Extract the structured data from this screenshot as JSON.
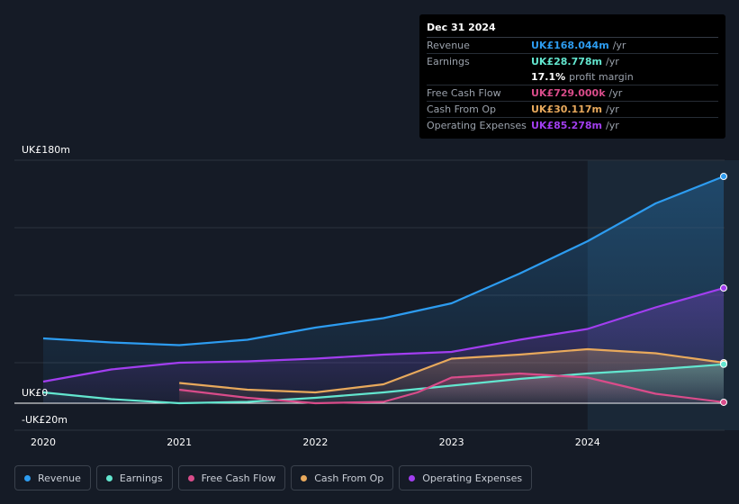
{
  "colors": {
    "revenue": "#2d9cf0",
    "earnings": "#63e6cf",
    "fcf": "#d94c8a",
    "cfo": "#e8a95c",
    "opex": "#a23ef0",
    "background": "#151b26"
  },
  "tooltip": {
    "date": "Dec 31 2024",
    "rows": [
      {
        "label": "Revenue",
        "value": "UK£168.044m",
        "unit": "/yr",
        "color": "#2d9cf0"
      },
      {
        "label": "Earnings",
        "value": "UK£28.778m",
        "unit": "/yr",
        "color": "#63e6cf"
      },
      {
        "label": "",
        "value": "17.1%",
        "unit": "profit margin",
        "color": "#ffffff"
      },
      {
        "label": "Free Cash Flow",
        "value": "UK£729.000k",
        "unit": "/yr",
        "color": "#d94c8a"
      },
      {
        "label": "Cash From Op",
        "value": "UK£30.117m",
        "unit": "/yr",
        "color": "#e8a95c"
      },
      {
        "label": "Operating Expenses",
        "value": "UK£85.278m",
        "unit": "/yr",
        "color": "#a23ef0"
      }
    ]
  },
  "chart_data": {
    "type": "line",
    "y_axis_labels": {
      "top": "UK£180m",
      "zero": "UK£0",
      "bottom": "-UK£20m"
    },
    "ylim": [
      -20,
      180
    ],
    "xlim": [
      2020,
      2025
    ],
    "x_ticks": [
      "2020",
      "2021",
      "2022",
      "2023",
      "2024"
    ],
    "x_tick_values": [
      2020,
      2021,
      2022,
      2023,
      2024
    ],
    "highlight_from": 2024,
    "series": [
      {
        "name": "Revenue",
        "key": "revenue",
        "x": [
          2020,
          2020.5,
          2021,
          2021.5,
          2022,
          2022.5,
          2023,
          2023.5,
          2024,
          2024.5,
          2025
        ],
        "y": [
          48,
          45,
          43,
          47,
          56,
          63,
          74,
          96,
          120,
          148,
          168
        ]
      },
      {
        "name": "Earnings",
        "key": "earnings",
        "x": [
          2020,
          2020.5,
          2021,
          2021.5,
          2022,
          2022.5,
          2023,
          2023.5,
          2024,
          2024.5,
          2025
        ],
        "y": [
          8,
          3,
          0,
          1,
          4,
          8,
          13,
          18,
          22,
          25,
          28.8
        ]
      },
      {
        "name": "Free Cash Flow",
        "key": "fcf",
        "x": [
          2021,
          2021.5,
          2022,
          2022.5,
          2022.75,
          2023,
          2023.5,
          2024,
          2024.5,
          2025
        ],
        "y": [
          10,
          4,
          0,
          1,
          8,
          19,
          22,
          19,
          7,
          0.7
        ]
      },
      {
        "name": "Cash From Op",
        "key": "cfo",
        "x": [
          2021,
          2021.5,
          2022,
          2022.5,
          2023,
          2023.5,
          2024,
          2024.5,
          2025
        ],
        "y": [
          15,
          10,
          8,
          14,
          33,
          36,
          40,
          37,
          30
        ]
      },
      {
        "name": "Operating Expenses",
        "key": "opex",
        "x": [
          2020,
          2020.5,
          2021,
          2021.5,
          2022,
          2022.5,
          2023,
          2023.5,
          2024,
          2024.5,
          2025
        ],
        "y": [
          16,
          25,
          30,
          31,
          33,
          36,
          38,
          47,
          55,
          71,
          85.3
        ]
      }
    ]
  },
  "legend": [
    {
      "label": "Revenue",
      "color": "#2d9cf0"
    },
    {
      "label": "Earnings",
      "color": "#63e6cf"
    },
    {
      "label": "Free Cash Flow",
      "color": "#d94c8a"
    },
    {
      "label": "Cash From Op",
      "color": "#e8a95c"
    },
    {
      "label": "Operating Expenses",
      "color": "#a23ef0"
    }
  ]
}
